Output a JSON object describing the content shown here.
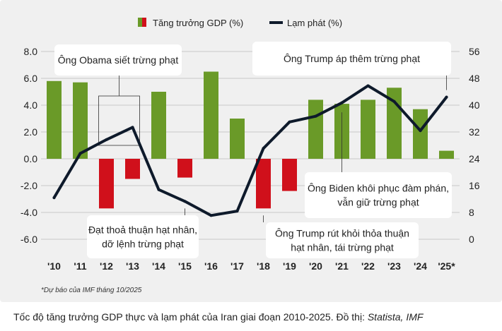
{
  "legend": {
    "gdp_label": "Tăng trưởng GDP (%)",
    "inflation_label": "Lạm phát (%)"
  },
  "footnote": "*Dự báo của IMF tháng 10/2025",
  "caption": {
    "text": "Tốc độ tăng trưởng GDP thực và lạm phát của Iran giai đoạn 2010-2025. Đồ thị: ",
    "source": "Statista, IMF"
  },
  "colors": {
    "positive_bar": "#6a9a28",
    "negative_bar": "#d0101b",
    "line": "#0e1a2b",
    "grid": "#c8c8c8",
    "annotation_bg": "#ffffff",
    "panel_bg": "#f0f0f0"
  },
  "chart_data": {
    "type": "bar+line",
    "categories": [
      "'10",
      "'11",
      "'12",
      "'13",
      "'14",
      "'15",
      "'16",
      "'17",
      "'18",
      "'19",
      "'20",
      "'21",
      "'22",
      "'23",
      "'24",
      "'25*"
    ],
    "series": [
      {
        "name": "Tăng trưởng GDP (%)",
        "type": "bar",
        "axis": "left",
        "values": [
          5.8,
          5.7,
          -3.7,
          -1.5,
          5.0,
          -1.4,
          6.5,
          3.0,
          -3.7,
          -2.4,
          4.4,
          4.1,
          4.4,
          5.3,
          3.7,
          0.6
        ]
      },
      {
        "name": "Lạm phát (%)",
        "type": "line",
        "axis": "right",
        "values": [
          12.4,
          25.6,
          29.7,
          33.4,
          14.8,
          11.3,
          7.1,
          8.4,
          27.1,
          35.0,
          36.7,
          40.7,
          45.8,
          41.1,
          32.4,
          42.4
        ]
      }
    ],
    "y_left": {
      "ticks": [
        "8.0",
        "6.0",
        "4.0",
        "2.0",
        "0.0",
        "-2.0",
        "-4.0",
        "-6.0"
      ],
      "range": [
        -6.0,
        8.0
      ]
    },
    "y_right": {
      "ticks": [
        "56",
        "48",
        "40",
        "32",
        "24",
        "16",
        "8",
        "0"
      ],
      "range": [
        0,
        56
      ]
    },
    "grid": true,
    "legend_position": "top-center",
    "annotations": [
      {
        "text": [
          "Ông Obama siết trừng phạt"
        ],
        "year_index": 3
      },
      {
        "text": [
          "Ông Trump áp thêm trừng phạt"
        ],
        "year_index": 15
      },
      {
        "text": [
          "Ông Biden khôi phục đàm phán,",
          "vẫn giữ trừng phạt"
        ],
        "year_index": 11
      },
      {
        "text": [
          "Đạt thoả thuận hạt nhân,",
          "dỡ lệnh trừng phạt"
        ],
        "year_index": 5
      },
      {
        "text": [
          "Ông Trump rút khỏi thỏa thuận",
          "hạt nhân, tái trừng phạt"
        ],
        "year_index": 8
      }
    ]
  }
}
